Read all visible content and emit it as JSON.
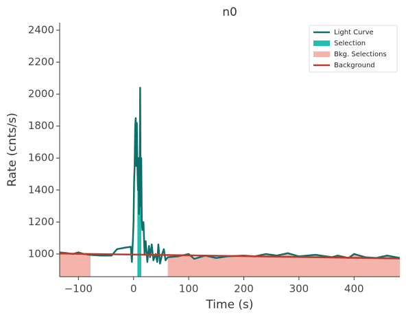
{
  "chart_data": {
    "type": "line",
    "title": "n0",
    "x_label": "Time (s)",
    "y_label": "Rate (cnts/s)",
    "xlim": [
      -134,
      483
    ],
    "ylim": [
      858,
      2447
    ],
    "xticks": [
      {
        "value": -100,
        "label": "−100"
      },
      0,
      100,
      200,
      300,
      400
    ],
    "yticks": [
      1000,
      1200,
      1400,
      1600,
      1800,
      2000,
      2200,
      2400
    ],
    "legend": "upper right",
    "series": [
      {
        "name": "Light Curve",
        "color": "#0e6e6a",
        "x": [
          -134,
          -120,
          -110,
          -100,
          -90,
          -80,
          -60,
          -40,
          -30,
          -15,
          -5,
          -3,
          -1,
          0,
          1,
          2,
          3,
          4,
          5,
          6,
          7,
          8,
          9,
          10,
          11,
          12,
          13,
          14,
          15,
          16,
          18,
          20,
          22,
          25,
          28,
          30,
          33,
          36,
          40,
          43,
          45,
          48,
          52,
          55,
          58,
          62,
          80,
          100,
          110,
          130,
          150,
          170,
          200,
          220,
          240,
          260,
          280,
          300,
          330,
          360,
          370,
          390,
          400,
          420,
          440,
          460,
          483
        ],
        "values": [
          1010,
          1005,
          1000,
          1010,
          1000,
          995,
          990,
          990,
          1030,
          1040,
          1045,
          950,
          1100,
          1200,
          1450,
          1550,
          1800,
          1850,
          1550,
          1820,
          1550,
          1400,
          1600,
          1250,
          1400,
          2040,
          1300,
          1600,
          1200,
          1150,
          1200,
          1000,
          1080,
          950,
          1050,
          980,
          1060,
          960,
          1000,
          950,
          1060,
          940,
          1000,
          1030,
          960,
          980,
          985,
          1000,
          970,
          990,
          975,
          985,
          990,
          985,
          1000,
          990,
          1005,
          985,
          995,
          980,
          990,
          975,
          1000,
          980,
          975,
          990,
          975
        ]
      },
      {
        "name": "Background",
        "color": "#b83a2b",
        "x": [
          -134,
          483
        ],
        "values": [
          1003,
          972
        ]
      }
    ],
    "selection": {
      "name": "Selection",
      "color": "#1ec1b1",
      "range": [
        7,
        14
      ]
    },
    "bkg_selections": {
      "name": "Bkg. Selections",
      "color": "#f4b4ab",
      "ranges": [
        [
          -134,
          -78
        ],
        [
          62,
          483
        ]
      ]
    }
  }
}
